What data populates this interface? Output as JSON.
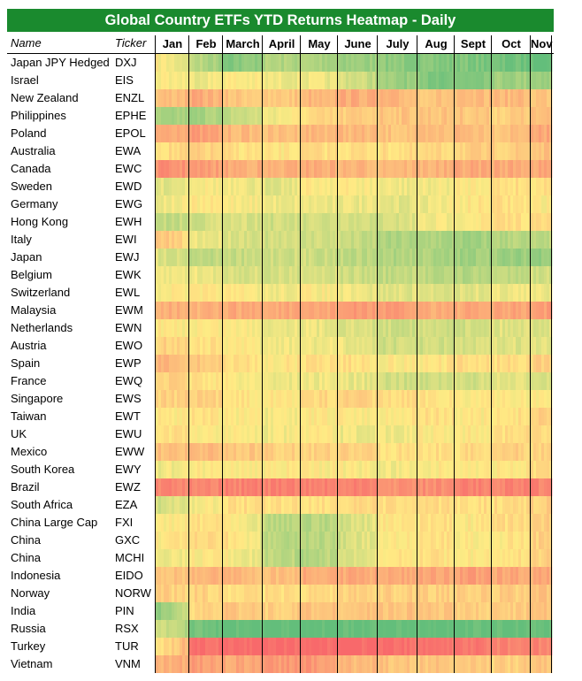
{
  "title": "Global Country ETFs YTD Returns Heatmap - Daily",
  "header": {
    "name_label": "Name",
    "ticker_label": "Ticker"
  },
  "chart_data": {
    "type": "heatmap",
    "months": [
      "Jan",
      "Feb",
      "March",
      "April",
      "May",
      "June",
      "July",
      "Aug",
      "Sept",
      "Oct",
      "Nov"
    ],
    "color_scale": {
      "negative": "#f8696b",
      "neutral": "#ffeb84",
      "positive": "#63be7b"
    },
    "value_scale": "relative YTD return, -1 (red) to +1 (green)",
    "rows": [
      {
        "name": "Japan JPY Hedged",
        "ticker": "DXJ",
        "monthly": [
          0.0,
          0.4,
          0.8,
          0.5,
          0.5,
          0.6,
          0.7,
          0.8,
          0.8,
          0.9,
          1.0
        ]
      },
      {
        "name": "Israel",
        "ticker": "EIS",
        "monthly": [
          0.0,
          0.1,
          0.0,
          0.1,
          0.1,
          0.2,
          0.6,
          0.8,
          0.8,
          0.6,
          0.6
        ]
      },
      {
        "name": "New Zealand",
        "ticker": "ENZL",
        "monthly": [
          -0.3,
          -0.5,
          -0.3,
          -0.2,
          -0.4,
          -0.5,
          -0.4,
          -0.3,
          -0.3,
          -0.4,
          -0.3
        ]
      },
      {
        "name": "Philippines",
        "ticker": "EPHE",
        "monthly": [
          0.5,
          0.6,
          0.4,
          0.1,
          -0.1,
          -0.2,
          -0.3,
          -0.3,
          -0.3,
          -0.2,
          -0.3
        ]
      },
      {
        "name": "Poland",
        "ticker": "EPOL",
        "monthly": [
          -0.5,
          -0.6,
          -0.4,
          -0.3,
          -0.4,
          -0.4,
          -0.3,
          -0.3,
          -0.4,
          -0.3,
          -0.5
        ]
      },
      {
        "name": "Australia",
        "ticker": "EWA",
        "monthly": [
          -0.1,
          -0.2,
          -0.1,
          0.0,
          -0.1,
          -0.1,
          -0.1,
          -0.1,
          -0.2,
          -0.2,
          -0.3
        ]
      },
      {
        "name": "Canada",
        "ticker": "EWC",
        "monthly": [
          -0.7,
          -0.6,
          -0.5,
          -0.4,
          -0.5,
          -0.4,
          -0.4,
          -0.4,
          -0.5,
          -0.5,
          -0.5
        ]
      },
      {
        "name": "Sweden",
        "ticker": "EWD",
        "monthly": [
          0.2,
          0.0,
          0.1,
          0.2,
          0.0,
          0.0,
          0.1,
          0.1,
          0.0,
          -0.1,
          -0.1
        ]
      },
      {
        "name": "Germany",
        "ticker": "EWG",
        "monthly": [
          0.1,
          0.0,
          0.0,
          0.1,
          0.1,
          0.1,
          0.2,
          0.1,
          0.0,
          -0.1,
          0.0
        ]
      },
      {
        "name": "Hong Kong",
        "ticker": "EWH",
        "monthly": [
          0.4,
          0.3,
          0.2,
          0.3,
          0.3,
          0.3,
          0.3,
          0.1,
          0.0,
          -0.1,
          -0.1
        ]
      },
      {
        "name": "Italy",
        "ticker": "EWI",
        "monthly": [
          -0.3,
          0.1,
          0.2,
          0.3,
          0.3,
          0.3,
          0.5,
          0.5,
          0.6,
          0.5,
          0.4
        ]
      },
      {
        "name": "Japan",
        "ticker": "EWJ",
        "monthly": [
          0.2,
          0.4,
          0.4,
          0.3,
          0.3,
          0.4,
          0.5,
          0.5,
          0.6,
          0.6,
          0.7
        ]
      },
      {
        "name": "Belgium",
        "ticker": "EWK",
        "monthly": [
          0.1,
          0.1,
          0.2,
          0.3,
          0.2,
          0.3,
          0.4,
          0.4,
          0.5,
          0.4,
          0.3
        ]
      },
      {
        "name": "Switzerland",
        "ticker": "EWL",
        "monthly": [
          0.0,
          0.0,
          0.0,
          0.1,
          0.0,
          0.1,
          0.2,
          0.2,
          0.2,
          0.1,
          0.1
        ]
      },
      {
        "name": "Malaysia",
        "ticker": "EWM",
        "monthly": [
          -0.5,
          -0.4,
          -0.5,
          -0.5,
          -0.5,
          -0.6,
          -0.6,
          -0.5,
          -0.5,
          -0.5,
          -0.6
        ]
      },
      {
        "name": "Netherlands",
        "ticker": "EWN",
        "monthly": [
          0.0,
          0.0,
          0.0,
          0.1,
          0.1,
          0.2,
          0.3,
          0.3,
          0.3,
          0.2,
          0.2
        ]
      },
      {
        "name": "Austria",
        "ticker": "EWO",
        "monthly": [
          -0.2,
          -0.1,
          0.0,
          0.1,
          0.1,
          0.1,
          0.3,
          0.3,
          0.3,
          0.2,
          0.2
        ]
      },
      {
        "name": "Spain",
        "ticker": "EWP",
        "monthly": [
          -0.4,
          -0.3,
          -0.1,
          0.0,
          -0.1,
          -0.1,
          0.0,
          0.0,
          -0.1,
          -0.1,
          -0.2
        ]
      },
      {
        "name": "France",
        "ticker": "EWQ",
        "monthly": [
          -0.2,
          -0.1,
          0.0,
          0.1,
          0.1,
          0.1,
          0.3,
          0.3,
          0.3,
          0.2,
          0.2
        ]
      },
      {
        "name": "Singapore",
        "ticker": "EWS",
        "monthly": [
          -0.2,
          -0.2,
          -0.1,
          0.0,
          -0.1,
          -0.2,
          -0.1,
          -0.1,
          0.0,
          0.0,
          0.0
        ]
      },
      {
        "name": "Taiwan",
        "ticker": "EWT",
        "monthly": [
          0.0,
          -0.1,
          0.0,
          0.1,
          0.0,
          0.0,
          0.0,
          -0.1,
          0.0,
          0.0,
          -0.2
        ]
      },
      {
        "name": "UK",
        "ticker": "EWU",
        "monthly": [
          -0.1,
          0.0,
          0.0,
          0.1,
          0.0,
          0.1,
          0.1,
          0.0,
          0.0,
          -0.1,
          -0.1
        ]
      },
      {
        "name": "Mexico",
        "ticker": "EWW",
        "monthly": [
          -0.3,
          -0.4,
          -0.3,
          -0.2,
          -0.2,
          -0.2,
          -0.1,
          -0.1,
          -0.1,
          -0.2,
          -0.2
        ]
      },
      {
        "name": "South Korea",
        "ticker": "EWY",
        "monthly": [
          0.1,
          0.0,
          0.0,
          0.0,
          0.0,
          0.0,
          0.1,
          0.0,
          0.0,
          0.0,
          -0.1
        ]
      },
      {
        "name": "Brazil",
        "ticker": "EWZ",
        "monthly": [
          -0.8,
          -0.8,
          -0.8,
          -0.8,
          -0.8,
          -0.8,
          -0.7,
          -0.7,
          -0.8,
          -0.8,
          -0.8
        ]
      },
      {
        "name": "South Africa",
        "ticker": "EZA",
        "monthly": [
          0.3,
          0.1,
          -0.1,
          -0.1,
          -0.1,
          -0.1,
          -0.1,
          -0.1,
          -0.1,
          -0.1,
          -0.2
        ]
      },
      {
        "name": "China Large Cap",
        "ticker": "FXI",
        "monthly": [
          0.0,
          -0.1,
          -0.1,
          0.4,
          0.5,
          0.3,
          0.0,
          -0.1,
          0.0,
          -0.1,
          -0.2
        ]
      },
      {
        "name": "China",
        "ticker": "GXC",
        "monthly": [
          0.0,
          -0.1,
          -0.1,
          0.4,
          0.5,
          0.3,
          0.0,
          -0.1,
          0.0,
          0.0,
          -0.2
        ]
      },
      {
        "name": "China",
        "ticker": "MCHI",
        "monthly": [
          0.1,
          0.0,
          0.0,
          0.4,
          0.5,
          0.3,
          0.0,
          -0.1,
          0.0,
          0.0,
          -0.2
        ]
      },
      {
        "name": "Indonesia",
        "ticker": "EIDO",
        "monthly": [
          -0.3,
          -0.4,
          -0.4,
          -0.3,
          -0.5,
          -0.5,
          -0.5,
          -0.5,
          -0.6,
          -0.5,
          -0.5
        ]
      },
      {
        "name": "Norway",
        "ticker": "NORW",
        "monthly": [
          -0.2,
          -0.2,
          -0.1,
          -0.1,
          -0.1,
          -0.2,
          -0.2,
          -0.2,
          -0.2,
          -0.2,
          -0.3
        ]
      },
      {
        "name": "India",
        "ticker": "PIN",
        "monthly": [
          0.7,
          -0.1,
          -0.3,
          -0.2,
          -0.3,
          -0.3,
          -0.3,
          -0.3,
          -0.2,
          -0.2,
          -0.3
        ]
      },
      {
        "name": "Russia",
        "ticker": "RSX",
        "monthly": [
          0.2,
          0.9,
          1.0,
          1.0,
          1.0,
          1.0,
          1.0,
          1.0,
          1.0,
          1.0,
          1.0
        ]
      },
      {
        "name": "Turkey",
        "ticker": "TUR",
        "monthly": [
          0.0,
          -0.9,
          -1.0,
          -1.0,
          -1.0,
          -1.0,
          -1.0,
          -0.9,
          -0.9,
          -0.8,
          -0.8
        ]
      },
      {
        "name": "Vietnam",
        "ticker": "VNM",
        "monthly": [
          -0.4,
          -0.6,
          -0.5,
          -0.6,
          -0.7,
          -0.4,
          -0.3,
          -0.3,
          -0.3,
          -0.2,
          -0.3
        ]
      }
    ]
  }
}
